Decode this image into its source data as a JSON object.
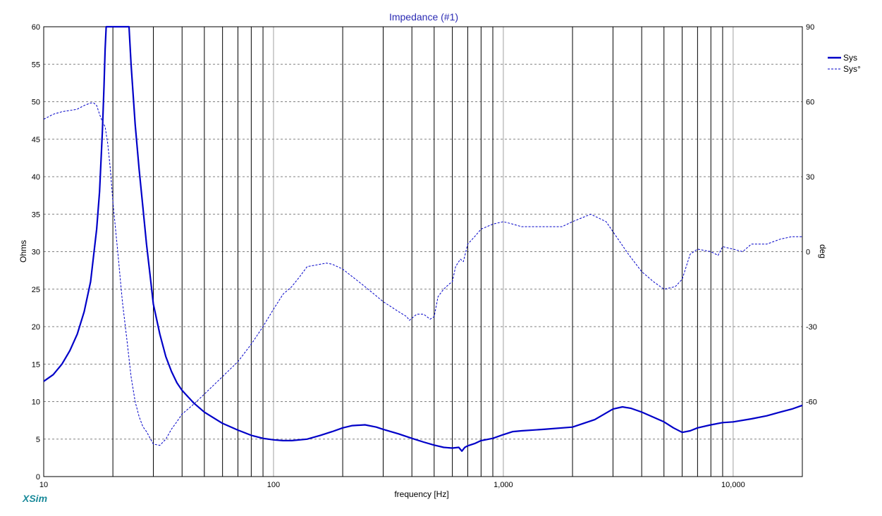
{
  "chart_data": {
    "type": "line",
    "title": "Impedance (#1)",
    "xlabel": "frequency [Hz]",
    "ylabel": "Ohms",
    "y2label": "deg",
    "xscale": "log",
    "xlim": [
      10,
      20000
    ],
    "ylim": [
      0,
      60
    ],
    "y2lim": [
      -90,
      90
    ],
    "x_tick_labels": [
      "10",
      "100",
      "1,000",
      "10,000"
    ],
    "x_tick_values": [
      10,
      100,
      1000,
      10000
    ],
    "y_tick_values": [
      0,
      5,
      10,
      15,
      20,
      25,
      30,
      35,
      40,
      45,
      50,
      55,
      60
    ],
    "y2_tick_values": [
      90,
      60,
      30,
      0,
      -30,
      -60
    ],
    "y2_tick_labels": [
      "90",
      "60",
      "30",
      "0",
      "-30",
      "-60"
    ],
    "grid": true,
    "legend_position": "top-right",
    "series": [
      {
        "name": "Sys",
        "axis": "left",
        "style": "solid",
        "color": "#0000c8",
        "points": [
          [
            10,
            12.7
          ],
          [
            11,
            13.6
          ],
          [
            12,
            15
          ],
          [
            13,
            16.8
          ],
          [
            14,
            19
          ],
          [
            15,
            22
          ],
          [
            16,
            26
          ],
          [
            17,
            33
          ],
          [
            17.5,
            38
          ],
          [
            18,
            46
          ],
          [
            18.3,
            52
          ],
          [
            18.5,
            57
          ],
          [
            18.7,
            60
          ],
          [
            23.5,
            60
          ],
          [
            24,
            55
          ],
          [
            25,
            47
          ],
          [
            26,
            41
          ],
          [
            27,
            36
          ],
          [
            28,
            31
          ],
          [
            29,
            27
          ],
          [
            30,
            23
          ],
          [
            32,
            19
          ],
          [
            34,
            16
          ],
          [
            36,
            14
          ],
          [
            38,
            12.5
          ],
          [
            40,
            11.5
          ],
          [
            45,
            9.8
          ],
          [
            50,
            8.6
          ],
          [
            60,
            7.1
          ],
          [
            70,
            6.2
          ],
          [
            80,
            5.5
          ],
          [
            90,
            5.1
          ],
          [
            100,
            4.9
          ],
          [
            110,
            4.8
          ],
          [
            120,
            4.8
          ],
          [
            140,
            5
          ],
          [
            160,
            5.5
          ],
          [
            180,
            6
          ],
          [
            200,
            6.5
          ],
          [
            220,
            6.8
          ],
          [
            250,
            6.9
          ],
          [
            280,
            6.6
          ],
          [
            300,
            6.3
          ],
          [
            350,
            5.7
          ],
          [
            400,
            5.1
          ],
          [
            450,
            4.6
          ],
          [
            500,
            4.2
          ],
          [
            550,
            3.9
          ],
          [
            600,
            3.8
          ],
          [
            640,
            3.9
          ],
          [
            660,
            3.4
          ],
          [
            680,
            3.9
          ],
          [
            700,
            4.1
          ],
          [
            750,
            4.4
          ],
          [
            800,
            4.8
          ],
          [
            900,
            5.1
          ],
          [
            1000,
            5.6
          ],
          [
            1100,
            6
          ],
          [
            1200,
            6.1
          ],
          [
            1500,
            6.3
          ],
          [
            2000,
            6.6
          ],
          [
            2500,
            7.6
          ],
          [
            3000,
            9
          ],
          [
            3300,
            9.3
          ],
          [
            3600,
            9.1
          ],
          [
            4000,
            8.6
          ],
          [
            5000,
            7.3
          ],
          [
            5500,
            6.5
          ],
          [
            6000,
            5.9
          ],
          [
            6500,
            6.1
          ],
          [
            7000,
            6.5
          ],
          [
            8000,
            6.9
          ],
          [
            9000,
            7.2
          ],
          [
            10000,
            7.3
          ],
          [
            12000,
            7.7
          ],
          [
            14000,
            8.1
          ],
          [
            16000,
            8.6
          ],
          [
            18000,
            9
          ],
          [
            20000,
            9.5
          ]
        ]
      },
      {
        "name": "Sys°",
        "axis": "right",
        "style": "dashed",
        "color": "#0000c8",
        "points": [
          [
            10,
            53
          ],
          [
            11,
            55
          ],
          [
            12,
            56
          ],
          [
            13,
            56.5
          ],
          [
            14,
            57
          ],
          [
            15,
            58.5
          ],
          [
            16,
            59.5
          ],
          [
            16.5,
            59.5
          ],
          [
            17,
            58.5
          ],
          [
            17.5,
            55
          ],
          [
            18,
            52
          ],
          [
            18.5,
            50
          ],
          [
            19,
            43
          ],
          [
            19.5,
            33
          ],
          [
            20,
            20
          ],
          [
            21,
            0
          ],
          [
            22,
            -20
          ],
          [
            23,
            -35
          ],
          [
            24,
            -50
          ],
          [
            25,
            -60
          ],
          [
            26,
            -66
          ],
          [
            27,
            -70
          ],
          [
            28,
            -72
          ],
          [
            30,
            -77
          ],
          [
            32,
            -77.5
          ],
          [
            34,
            -75
          ],
          [
            36,
            -71
          ],
          [
            38,
            -68
          ],
          [
            40,
            -65
          ],
          [
            45,
            -61
          ],
          [
            50,
            -57
          ],
          [
            60,
            -50
          ],
          [
            70,
            -44
          ],
          [
            80,
            -37
          ],
          [
            90,
            -30
          ],
          [
            100,
            -23
          ],
          [
            110,
            -17
          ],
          [
            120,
            -14
          ],
          [
            130,
            -10
          ],
          [
            140,
            -6
          ],
          [
            160,
            -5
          ],
          [
            170,
            -4.6
          ],
          [
            180,
            -5
          ],
          [
            200,
            -7
          ],
          [
            250,
            -14
          ],
          [
            300,
            -20
          ],
          [
            350,
            -24
          ],
          [
            380,
            -26
          ],
          [
            390,
            -27.5
          ],
          [
            420,
            -25
          ],
          [
            450,
            -25
          ],
          [
            480,
            -27
          ],
          [
            500,
            -26
          ],
          [
            520,
            -18
          ],
          [
            550,
            -15
          ],
          [
            580,
            -13
          ],
          [
            600,
            -12
          ],
          [
            620,
            -6
          ],
          [
            650,
            -3
          ],
          [
            670,
            -4
          ],
          [
            700,
            3
          ],
          [
            750,
            6
          ],
          [
            800,
            9
          ],
          [
            900,
            11
          ],
          [
            1000,
            12
          ],
          [
            1100,
            11
          ],
          [
            1200,
            10
          ],
          [
            1400,
            10
          ],
          [
            1600,
            10
          ],
          [
            1800,
            10
          ],
          [
            2000,
            12
          ],
          [
            2400,
            15
          ],
          [
            2800,
            12
          ],
          [
            3000,
            8
          ],
          [
            3500,
            -1
          ],
          [
            4000,
            -8
          ],
          [
            4500,
            -12
          ],
          [
            5000,
            -15
          ],
          [
            5600,
            -14
          ],
          [
            6000,
            -11
          ],
          [
            6500,
            -1
          ],
          [
            7000,
            1
          ],
          [
            8000,
            0
          ],
          [
            8600,
            -1.5
          ],
          [
            9000,
            2
          ],
          [
            10000,
            1
          ],
          [
            11000,
            0
          ],
          [
            12000,
            3
          ],
          [
            14000,
            3
          ],
          [
            16000,
            5
          ],
          [
            18000,
            6
          ],
          [
            20000,
            6
          ]
        ]
      }
    ]
  },
  "branding": {
    "logo": "XSim"
  }
}
